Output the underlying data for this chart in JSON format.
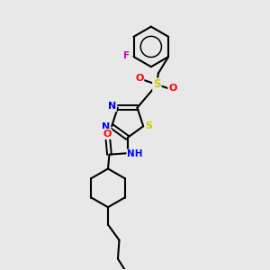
{
  "background_color": "#e8e8e8",
  "bond_color": "#000000",
  "atom_colors": {
    "N": "#0000ff",
    "S": "#cccc00",
    "O": "#ff0000",
    "F": "#cc00cc",
    "H": "#008080",
    "C": "#000000"
  },
  "figsize": [
    3.0,
    3.0
  ],
  "dpi": 100,
  "xlim": [
    0,
    10
  ],
  "ylim": [
    0,
    10
  ]
}
